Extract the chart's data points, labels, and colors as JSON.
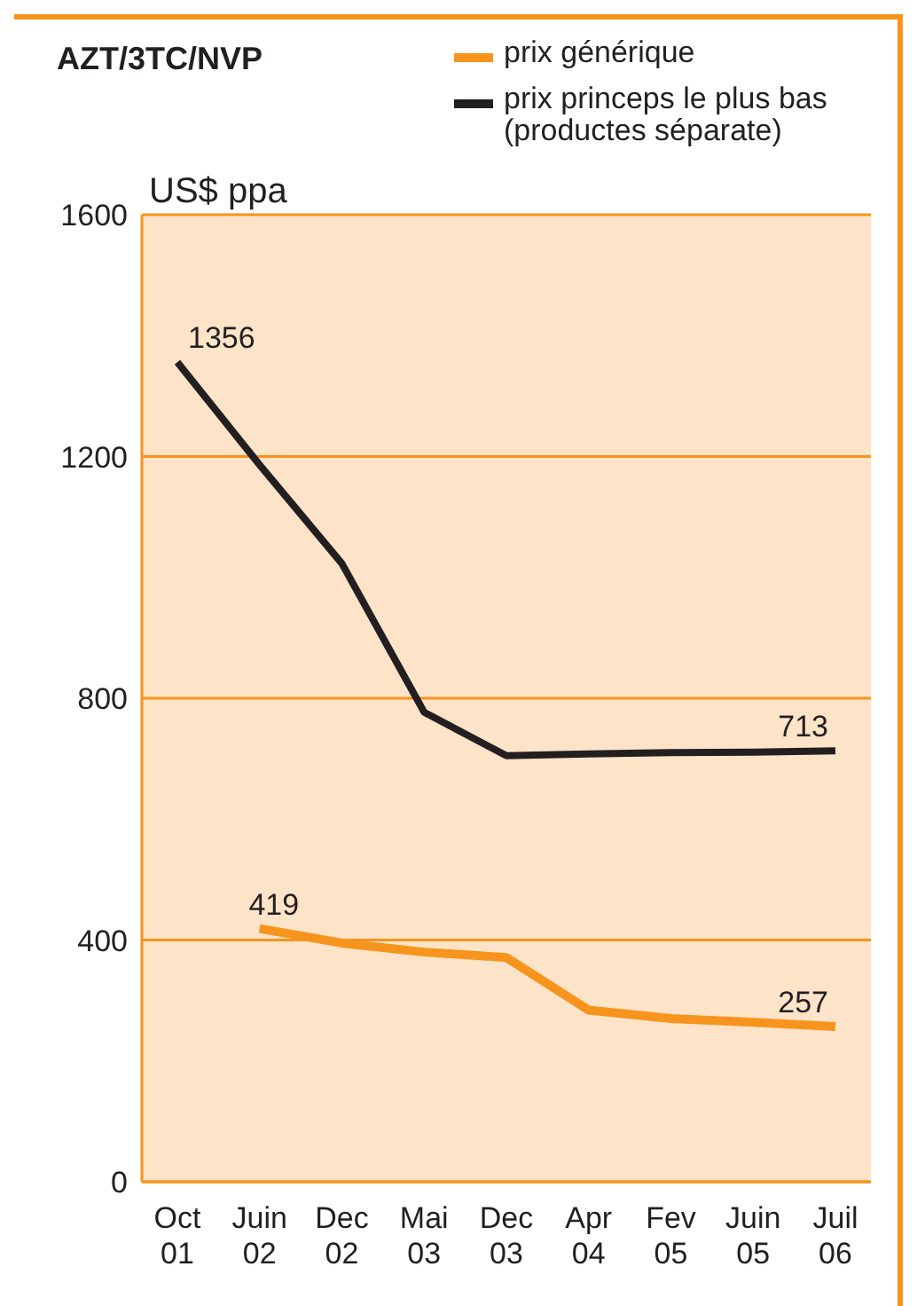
{
  "chart_data": {
    "type": "line",
    "title": "AZT/3TC/NVP",
    "ylabel": "US$ ppa",
    "categories": [
      "Oct 01",
      "Juin 02",
      "Dec 02",
      "Mai 03",
      "Dec 03",
      "Apr 04",
      "Fev 05",
      "Juin 05",
      "Juil 06"
    ],
    "series": [
      {
        "name": "prix générique",
        "color": "#f7941d",
        "values": [
          null,
          419,
          395,
          380,
          371,
          284,
          270,
          264,
          257
        ],
        "value_labels": [
          null,
          "419",
          null,
          null,
          null,
          null,
          null,
          null,
          "257"
        ]
      },
      {
        "name": "prix princeps le plus bas (productes séparate)",
        "color": "#231f20",
        "values": [
          1356,
          1186,
          1023,
          777,
          705,
          708,
          710,
          711,
          713
        ],
        "value_labels": [
          "1356",
          null,
          null,
          null,
          null,
          null,
          null,
          null,
          "713"
        ]
      }
    ],
    "ylim": [
      0,
      1600
    ],
    "yticks": [
      0,
      400,
      800,
      1200,
      1600
    ],
    "grid": "y",
    "legend": "top right",
    "marker": "none",
    "line_style": "solid"
  }
}
